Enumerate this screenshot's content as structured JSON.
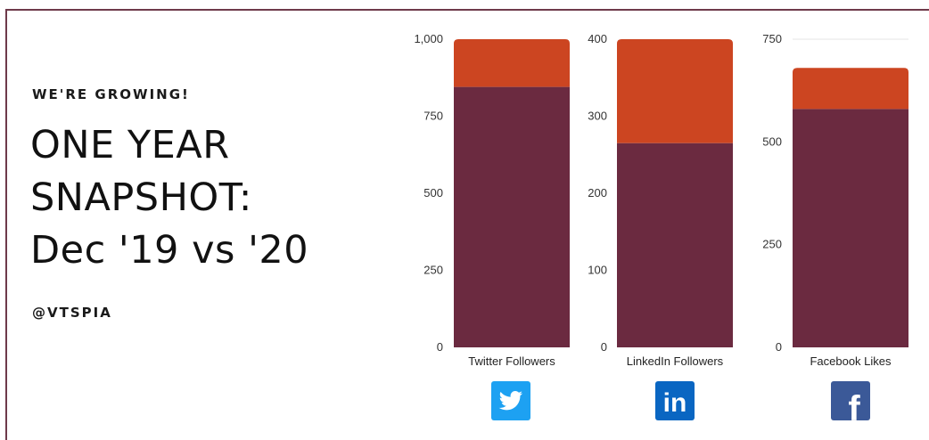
{
  "header": {
    "kicker": "WE'RE GROWING!",
    "title_lines": [
      "ONE YEAR",
      "SNAPSHOT:",
      "Dec '19 vs '20"
    ],
    "handle": "@VTSPIA"
  },
  "colors": {
    "dec19": "#6b2a40",
    "growth": "#cc4521",
    "twitter": "#1da1f2",
    "linkedin": "#0a66c2",
    "facebook": "#3b5998",
    "frame": "#6e3a4a"
  },
  "logos": [
    {
      "icon": "twitter-icon"
    },
    {
      "icon": "linkedin-icon",
      "text": "in"
    },
    {
      "icon": "facebook-icon",
      "text": "f"
    }
  ],
  "chart_data": [
    {
      "type": "bar",
      "categories": [
        "Twitter Followers"
      ],
      "series": [
        {
          "values": [
            845
          ]
        },
        {
          "values": [
            155
          ]
        }
      ],
      "stacked": true,
      "ylim": [
        0,
        1000
      ],
      "yticks": [
        "0",
        "250",
        "500",
        "750",
        "1,000"
      ],
      "ytick_values": [
        0,
        250,
        500,
        750,
        1000
      ],
      "grid": false
    },
    {
      "type": "bar",
      "categories": [
        "LinkedIn Followers"
      ],
      "series": [
        {
          "values": [
            265
          ]
        },
        {
          "values": [
            135
          ]
        }
      ],
      "stacked": true,
      "ylim": [
        0,
        400
      ],
      "yticks": [
        "0",
        "100",
        "200",
        "300",
        "400"
      ],
      "ytick_values": [
        0,
        100,
        200,
        300,
        400
      ],
      "grid": false
    },
    {
      "type": "bar",
      "categories": [
        "Facebook Likes"
      ],
      "series": [
        {
          "values": [
            580
          ]
        },
        {
          "values": [
            100
          ]
        }
      ],
      "stacked": true,
      "ylim": [
        0,
        750
      ],
      "yticks": [
        "0",
        "250",
        "500",
        "750"
      ],
      "ytick_values": [
        0,
        250,
        500,
        750
      ],
      "grid": true
    }
  ]
}
